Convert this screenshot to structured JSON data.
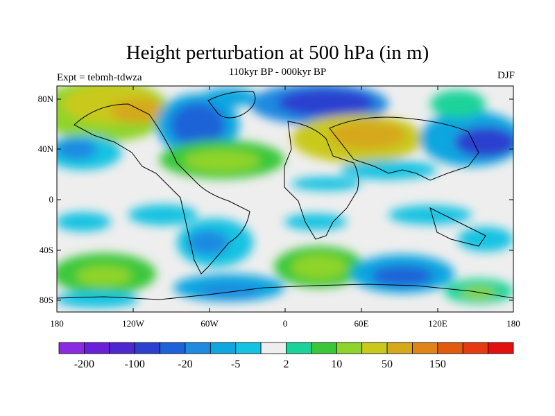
{
  "title": "Height perturbation at 500 hPa (in m)",
  "subtitle": "110kyr BP - 000kyr BP",
  "left_label": "Expt = tebmh-tdwza",
  "right_label": "DJF",
  "lat_ticks": [
    "80N",
    "40N",
    "0",
    "40S",
    "80S"
  ],
  "lon_ticks": [
    "180",
    "120W",
    "60W",
    "0",
    "60E",
    "120E",
    "180"
  ],
  "colorbar": {
    "colors": [
      "#8a2be2",
      "#6a1fd8",
      "#4f27cf",
      "#2c3fcf",
      "#1c63d8",
      "#1f8ae0",
      "#10a6e0",
      "#12c3e2",
      "#eeeeee",
      "#1ad39a",
      "#3ac83a",
      "#8fd42c",
      "#c9c91d",
      "#d6a81c",
      "#e08417",
      "#e05a10",
      "#e63b10",
      "#e31010"
    ],
    "labels": [
      "-200",
      "-100",
      "-20",
      "-5",
      "2",
      "10",
      "50",
      "150"
    ]
  }
}
